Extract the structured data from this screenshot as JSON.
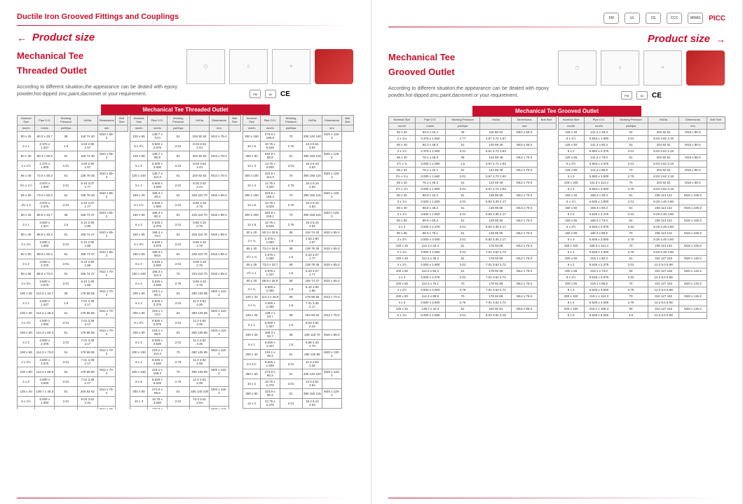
{
  "header": {
    "catalog_title": "Ductile Iron Grooved Fittings and Couplings",
    "section_label": "Product size",
    "certs": [
      "FM",
      "UL",
      "CE",
      "CCC",
      "WRAS"
    ],
    "picc": "PICC"
  },
  "left": {
    "product_name_1": "Mechanical Tee",
    "product_name_2": "Threaded Outlet",
    "description": "According to different situation,the appearance can be dealed with epoxy powder,hot-dipped zinc,paint,dacromet or your requirement.",
    "table_title": "Mechanical Tee Threaded Outlet",
    "cert_marks": [
      "FM",
      "UL"
    ],
    "ce_mark": "CE"
  },
  "right": {
    "product_name_1": "Mechanical Tee",
    "product_name_2": "Grooved Outlet",
    "description": "According to different situation,the appearance can be dealed with epoxy powder,hot-dipped zinc,paint,dacromet or your requirement.",
    "table_title": "Mechanical Tee Grooved Outlet",
    "cert_marks": [
      "FM",
      "UL"
    ],
    "ce_mark": "CE"
  },
  "table": {
    "headers": [
      "Nominal Size",
      "Pipe O.D.",
      "Working Pressure",
      "HxDia",
      "Dimensions",
      "Bolt Size"
    ],
    "sub_headers": [
      "mm/in",
      "mm/in",
      "psi/Mpa",
      "",
      "mm",
      ""
    ],
    "working_pressure": "300Psi 2.07Mpa"
  },
  "left_rows_a": [
    [
      "50 x 25",
      "60.3 x 33.7",
      "38",
      "118 74 40",
      "M10 x 55-2"
    ],
    [
      "2 x 1",
      "2.375 x 1.327",
      "1.5",
      "4.63 2.90 1.57",
      ""
    ],
    [
      "50 x 40",
      "60.3 x 48.3",
      "51",
      "118 74 40",
      "M10 x 55-2"
    ],
    [
      "2 x 1½",
      "2.375 x 1.900",
      "2.01",
      "4.63 2.90 1.57",
      ""
    ],
    [
      "65 x 40",
      "73.0 x 48.3",
      "51",
      "138 78 45",
      "M10 x 55-2"
    ],
    [
      "2½ x 1½",
      "2.875 x 1.900",
      "2.01",
      "5.43 3.07 1.77",
      ""
    ],
    [
      "65 x 50",
      "73.0 x 60.3",
      "51",
      "138 78 45",
      "M10 x 55-2"
    ],
    [
      "2½ x 2",
      "2.875 x 2.375",
      "2.01",
      "5.43 3.07 1.77",
      ""
    ],
    [
      "80 x 25",
      "88.9 x 33.7",
      "38",
      "155 74 47",
      "M10 x 55-2"
    ],
    [
      "3 x 1",
      "3.500 x 1.327",
      "1.5",
      "6.10 2.90 1.85",
      ""
    ],
    [
      "80 x 40",
      "88.9 x 48.3",
      "51",
      "155 74 47",
      "M10 x 55-2"
    ],
    [
      "3 x 1½",
      "3.500 x 1.900",
      "2.01",
      "6.10 2.90 1.85",
      ""
    ],
    [
      "80 x 50",
      "88.9 x 60.3",
      "51",
      "155 74 47",
      "M10 x 55-2"
    ],
    [
      "3 x 2",
      "3.500 x 2.375",
      "2.01",
      "6.10 2.90 1.85",
      ""
    ],
    [
      "80 x 65",
      "88.9 x 73.0",
      "51",
      "155 74 47",
      "M12 x 70-2"
    ],
    [
      "3 x 2½",
      "3.500 x 2.875",
      "2.01",
      "6.10 2.90 1.85",
      ""
    ],
    [
      "100 x 25",
      "114.3 x 33.7",
      "38",
      "178 86 55",
      "M12 x 70-2"
    ],
    [
      "4 x 1",
      "4.500 x 1.327",
      "1.5",
      "7.01 3.38 2.17",
      ""
    ],
    [
      "100 x 40",
      "114.3 x 48.3",
      "51",
      "178 86 55",
      "M12 x 70-2"
    ],
    [
      "4 x 1½",
      "4.500 x 1.900",
      "2.01",
      "7.01 3.38 2.17",
      ""
    ],
    [
      "100 x 50",
      "114.3 x 60.3",
      "51",
      "178 86 55",
      "M12 x 70-2"
    ],
    [
      "4 x 2",
      "4.500 x 2.375",
      "2.01",
      "7.01 3.38 2.17",
      ""
    ],
    [
      "100 x 65",
      "114.3 x 73.0",
      "51",
      "178 86 55",
      "M12 x 70-2"
    ],
    [
      "4 x 2½",
      "4.500 x 2.875",
      "2.01",
      "7.01 3.38 2.17",
      ""
    ],
    [
      "100 x 80",
      "114.3 x 88.9",
      "51",
      "178 86 55",
      "M12 x 70-2"
    ],
    [
      "4 x 3",
      "4.500 x 3.500",
      "2.01",
      "7.01 3.38 2.17",
      ""
    ],
    [
      "125 x 40",
      "139.7 x 48.3",
      "51",
      "204 92 62",
      "M12 x 75-2"
    ],
    [
      "5 x 1½",
      "5.500 x 1.900",
      "2.01",
      "8.03 3.62 2.44",
      ""
    ],
    [
      "125 x 50",
      "139.7 x 60.3",
      "51",
      "204 92 62",
      "M12 x 75-2"
    ],
    [
      "5 x 2",
      "5.500 x 2.375",
      "2.01",
      "8.03 3.62 2.44",
      ""
    ]
  ],
  "left_rows_b": [
    [
      "125 x 65",
      "139.7 x 73.0",
      "51",
      "204 92 62",
      "M12 x 75-2"
    ],
    [
      "5 x 2½",
      "5.500 x 2.875",
      "2.01",
      "8.03 3.62 2.44",
      ""
    ],
    [
      "125 x 80",
      "139.7 x 88.9",
      "51",
      "204 92 62",
      "M12 x 75-2"
    ],
    [
      "5 x 3",
      "5.500 x 3.500",
      "2.01",
      "8.03 3.62 2.44",
      ""
    ],
    [
      "125 x 100",
      "139.7 x 114.3",
      "51",
      "204 92 62",
      "M12 x 75-2"
    ],
    [
      "5 x 4",
      "5.500 x 4.500",
      "2.01",
      "8.03 3.62 2.44",
      ""
    ],
    [
      "150 x 40",
      "168.3 x 48.3",
      "51",
      "225 110 70",
      "M16 x 85-2"
    ],
    [
      "6 x 1½",
      "6.625 x 1.900",
      "2.01",
      "8.86 4.33 2.76",
      ""
    ],
    [
      "150 x 50",
      "168.3 x 60.3",
      "51",
      "225 110 70",
      "M16 x 85-2"
    ],
    [
      "6 x 2",
      "6.625 x 2.375",
      "2.01",
      "8.86 4.33 2.76",
      ""
    ],
    [
      "150 x 65",
      "168.3 x 73.0",
      "51",
      "225 110 70",
      "M16 x 85-2"
    ],
    [
      "6 x 2½",
      "6.625 x 2.875",
      "2.01",
      "8.86 4.33 2.76",
      ""
    ],
    [
      "150 x 80",
      "168.3 x 88.9",
      "51",
      "225 110 70",
      "M16 x 85-2"
    ],
    [
      "6 x 3",
      "6.625 x 3.500",
      "2.01",
      "8.86 4.33 2.76",
      ""
    ],
    [
      "150 x 100",
      "168.3 x 114.3",
      "70",
      "225 110 70",
      "M16 x 85-2"
    ],
    [
      "6 x 4",
      "6.625 x 4.500",
      "2.76",
      "8.86 4.33 2.76",
      ""
    ],
    [
      "200 x 50",
      "219.1 x 60.3",
      "51",
      "280 125 85",
      "M20 x 110-2"
    ],
    [
      "8 x 2",
      "8.625 x 2.375",
      "2.01",
      "11.0 4.92 3.35",
      ""
    ],
    [
      "200 x 65",
      "219.1 x 73.0",
      "51",
      "280 125 85",
      "M20 x 110-2"
    ],
    [
      "8 x 2½",
      "8.625 x 2.875",
      "2.01",
      "11.0 4.92 3.35",
      ""
    ],
    [
      "200 x 80",
      "219.1 x 88.9",
      "51",
      "280 125 85",
      "M20 x 110-2"
    ],
    [
      "8 x 3",
      "8.625 x 3.500",
      "2.01",
      "11.0 4.92 3.35",
      ""
    ],
    [
      "200 x 100",
      "219.1 x 114.3",
      "70",
      "280 125 85",
      "M20 x 110-2"
    ],
    [
      "8 x 4",
      "8.625 x 4.500",
      "2.76",
      "11.0 4.92 3.35",
      ""
    ],
    [
      "200 x 150",
      "219.1 x 168.3",
      "70",
      "280 125 85",
      "M20 x 110-2"
    ],
    [
      "8 x 6",
      "8.625 x 6.625",
      "2.76",
      "11.0 4.92 3.35",
      ""
    ],
    [
      "250 x 80",
      "273.0 x 88.9",
      "51",
      "335 140 100",
      "M20 x 115-2"
    ],
    [
      "10 x 3",
      "10.75 x 3.500",
      "2.01",
      "13.2 5.51 3.94",
      ""
    ],
    [
      "250 x 100",
      "273.0 x 114.3",
      "70",
      "335 140 100",
      "M20 x 115-2"
    ],
    [
      "10 x 4",
      "10.75 x 4.500",
      "2.76",
      "13.2 5.51 3.94",
      ""
    ]
  ],
  "left_rows_c": [
    [
      "250 x 150",
      "273.0 x 168.3",
      "70",
      "335 140 100",
      "M20 x 115-2"
    ],
    [
      "10 x 6",
      "10.75 x 6.625",
      "2.76",
      "13.2 5.51 3.94",
      ""
    ],
    [
      "300 x 80",
      "323.9 x 88.9",
      "51",
      "390 155 115",
      "M20 x 125-2"
    ],
    [
      "12 x 3",
      "12.75 x 3.500",
      "2.01",
      "15.4 6.10 4.53",
      ""
    ],
    [
      "300 x 100",
      "323.9 x 114.3",
      "70",
      "390 155 115",
      "M20 x 125-2"
    ],
    [
      "12 x 4",
      "12.75 x 4.500",
      "2.76",
      "15.4 6.10 4.53",
      ""
    ],
    [
      "300 x 150",
      "323.9 x 168.3",
      "70",
      "390 155 115",
      "M20 x 125-2"
    ],
    [
      "12 x 6",
      "12.75 x 6.625",
      "2.76",
      "15.4 6.10 4.53",
      ""
    ],
    [
      "300 x 200",
      "323.9 x 219.1",
      "70",
      "390 155 115",
      "M20 x 125-2"
    ],
    [
      "12 x 8",
      "12.75 x 8.625",
      "2.76",
      "15.4 6.10 4.53",
      ""
    ],
    [
      "50 x 20",
      "60.3 x 26.9",
      "38",
      "118 74 40",
      "M10 x 55-2"
    ],
    [
      "2 x ¾",
      "2.375 x 1.050",
      "1.5",
      "4.63 2.90 1.57",
      ""
    ],
    [
      "65 x 20",
      "73.0 x 26.9",
      "38",
      "138 78 45",
      "M10 x 55-2"
    ],
    [
      "2½ x ¾",
      "2.875 x 1.050",
      "1.5",
      "5.43 3.07 1.77",
      ""
    ],
    [
      "65 x 25",
      "73.0 x 33.7",
      "38",
      "138 78 45",
      "M10 x 55-2"
    ],
    [
      "2½ x 1",
      "2.875 x 1.327",
      "1.5",
      "5.43 3.07 1.77",
      ""
    ],
    [
      "80 x 20",
      "88.9 x 26.9",
      "38",
      "155 74 47",
      "M10 x 55-2"
    ],
    [
      "3 x ¾",
      "3.500 x 1.050",
      "1.5",
      "6.10 2.90 1.85",
      ""
    ],
    [
      "100 x 20",
      "114.3 x 26.9",
      "38",
      "178 86 55",
      "M12 x 70-2"
    ],
    [
      "4 x ¾",
      "4.500 x 1.050",
      "1.5",
      "7.01 3.38 2.17",
      ""
    ],
    [
      "125 x 25",
      "139.7 x 33.7",
      "38",
      "204 92 62",
      "M12 x 75-2"
    ],
    [
      "5 x 1",
      "5.500 x 1.327",
      "1.5",
      "8.03 3.62 2.44",
      ""
    ],
    [
      "150 x 25",
      "168.3 x 33.7",
      "38",
      "225 110 70",
      "M16 x 85-2"
    ],
    [
      "6 x 1",
      "6.625 x 1.327",
      "1.5",
      "8.86 4.33 2.76",
      ""
    ],
    [
      "200 x 40",
      "219.1 x 48.3",
      "51",
      "280 125 85",
      "M20 x 110-2"
    ],
    [
      "8 x 1½",
      "8.625 x 1.900",
      "2.01",
      "11.0 4.92 3.35",
      ""
    ],
    [
      "250 x 50",
      "273.0 x 60.3",
      "51",
      "335 140 100",
      "M20 x 115-2"
    ],
    [
      "10 x 2",
      "10.75 x 2.375",
      "2.01",
      "13.2 5.51 3.94",
      ""
    ],
    [
      "300 x 50",
      "323.9 x 60.3",
      "51",
      "390 155 115",
      "M20 x 125-2"
    ],
    [
      "12 x 2",
      "12.75 x 2.375",
      "2.01",
      "15.4 6.10 4.53",
      ""
    ]
  ],
  "right_rows_a": [
    [
      "50 x 32",
      "60.3 x 42.4",
      "45",
      "116 68 40",
      "M10 x 55-2"
    ],
    [
      "2 x 1¼",
      "2.375 x 1.660",
      "1.77",
      "4.57 2.72 1.57",
      ""
    ],
    [
      "50 x 40",
      "60.3 x 48.3",
      "51",
      "140 69 49",
      "M10 x 55-2"
    ],
    [
      "2 x 1½",
      "2.375 x 1.900",
      "2.01",
      "5.51 2.72 1.93",
      ""
    ],
    [
      "65 x 20",
      "76.1 x 26.9",
      "38",
      "144 69 49",
      "M12 x 70-2"
    ],
    [
      "2½ x ¾",
      "3.000 x 1.050",
      "1.5",
      "5.67 2.72 1.93",
      ""
    ],
    [
      "65 x 32",
      "76.1 x 42.4",
      "51",
      "144 69 49",
      "M12 x 70-2"
    ],
    [
      "2½ x 1¼",
      "3.000 x 1.660",
      "2.01",
      "5.67 2.72 1.93",
      ""
    ],
    [
      "65 x 40",
      "76.1 x 48.3",
      "51",
      "144 69 49",
      "M12 x 70-2"
    ],
    [
      "2½ x 1½",
      "3.000 x 1.900",
      "2.01",
      "5.67 2.72 1.93",
      ""
    ],
    [
      "80 x 32",
      "88.9 x 42.4",
      "51",
      "148 85 55",
      "M12 x 70-2"
    ],
    [
      "3 x 1¼",
      "3.500 x 1.660",
      "2.01",
      "5.83 3.35 2.17",
      ""
    ],
    [
      "80 x 40",
      "88.9 x 48.3",
      "51",
      "148 85 55",
      "M12 x 70-2"
    ],
    [
      "3 x 1½",
      "3.500 x 1.900",
      "2.01",
      "5.83 3.35 2.17",
      ""
    ],
    [
      "80 x 50",
      "88.9 x 60.3",
      "51",
      "148 85 55",
      "M12 x 70-2"
    ],
    [
      "3 x 2",
      "3.500 x 2.375",
      "2.01",
      "5.83 3.35 2.17",
      ""
    ],
    [
      "80 x 65",
      "88.9 x 76.1",
      "51",
      "148 85 55",
      "M12 x 70-2"
    ],
    [
      "3 x 2½",
      "3.500 x 3.000",
      "2.01",
      "5.83 3.35 2.17",
      ""
    ],
    [
      "100 x 32",
      "114.3 x 42.4",
      "51",
      "178 92 69",
      "M12 x 75-2"
    ],
    [
      "4 x 1¼",
      "4.500 x 1.660",
      "2.01",
      "7.01 3.62 2.72",
      ""
    ],
    [
      "100 x 40",
      "114.3 x 48.3",
      "51",
      "178 92 69",
      "M12 x 75-2"
    ],
    [
      "4 x 1½",
      "4.500 x 1.900",
      "2.01",
      "7.01 3.62 2.72",
      ""
    ],
    [
      "100 x 50",
      "114.3 x 60.3",
      "51",
      "178 92 69",
      "M12 x 75-2"
    ],
    [
      "4 x 2",
      "4.500 x 2.375",
      "2.01",
      "7.01 3.62 2.72",
      ""
    ],
    [
      "100 x 65",
      "114.3 x 76.1",
      "70",
      "178 92 69",
      "M12 x 75-2"
    ],
    [
      "4 x 2½",
      "4.500 x 3.000",
      "2.76",
      "7.01 3.62 2.72",
      ""
    ],
    [
      "100 x 80",
      "114.3 x 88.9",
      "70",
      "178 92 69",
      "M12 x 75-2"
    ],
    [
      "4 x 3",
      "4.500 x 3.500",
      "2.76",
      "7.01 3.62 2.72",
      ""
    ],
    [
      "125 x 32",
      "139.7 x 42.4",
      "51",
      "204 92 81",
      "M16 x 85-2"
    ],
    [
      "5 x 1¼",
      "5.500 x 1.660",
      "2.01",
      "8.03 3.62 3.19",
      ""
    ]
  ],
  "right_rows_b": [
    [
      "125 x 40",
      "141.3 x 48.3",
      "51",
      "204 92 81",
      "M16 x 85-2"
    ],
    [
      "5 x 1½",
      "5.563 x 1.900",
      "2.01",
      "8.03 3.62 3.19",
      ""
    ],
    [
      "125 x 50",
      "141.3 x 60.3",
      "51",
      "204 92 81",
      "M16 x 85-2"
    ],
    [
      "5 x 2",
      "5.563 x 2.375",
      "2.01",
      "8.03 3.62 3.19",
      ""
    ],
    [
      "125 x 65",
      "141.3 x 73.0",
      "51",
      "204 92 81",
      "M16 x 85-2"
    ],
    [
      "5 x 2½",
      "5.563 x 2.875",
      "2.01",
      "8.03 3.62 3.19",
      ""
    ],
    [
      "125 x 80",
      "141.3 x 88.9",
      "70",
      "204 92 81",
      "M16 x 85-2"
    ],
    [
      "5 x 3",
      "5.563 x 3.500",
      "2.76",
      "8.03 3.62 3.19",
      ""
    ],
    [
      "125 x 100",
      "141.3 x 114.3",
      "70",
      "204 92 81",
      "M16 x 85-2"
    ],
    [
      "5 x 4",
      "5.563 x 4.500",
      "2.76",
      "8.03 3.62 3.19",
      ""
    ],
    [
      "150 x 40",
      "168.3 x 48.3",
      "51",
      "236 113 122",
      "M16 x 105-2"
    ],
    [
      "6 x 1½",
      "6.625 x 1.900",
      "2.01",
      "9.29 4.45 4.80",
      ""
    ],
    [
      "150 x 50",
      "168.3 x 60.3",
      "51",
      "236 113 122",
      "M16 x 105-2"
    ],
    [
      "6 x 2",
      "6.625 x 2.375",
      "2.01",
      "9.29 4.45 4.80",
      ""
    ],
    [
      "150 x 65",
      "168.3 x 73.0",
      "64",
      "236 113 122",
      "M16 x 105-2"
    ],
    [
      "6 x 2½",
      "6.625 x 2.875",
      "2.52",
      "9.29 4.45 4.80",
      ""
    ],
    [
      "150 x 80",
      "168.3 x 88.9",
      "70",
      "236 113 122",
      "M16 x 105-2"
    ],
    [
      "6 x 3",
      "6.625 x 3.500",
      "2.76",
      "9.29 4.45 4.80",
      ""
    ],
    [
      "150 x 100",
      "168.3 x 114.3",
      "70",
      "236 113 122",
      "M16 x 105-2"
    ],
    [
      "6 x 4",
      "6.625 x 4.500",
      "2.76",
      "9.29 4.45 4.80",
      ""
    ],
    [
      "200 x 50",
      "219.1 x 60.3",
      "51",
      "310 127 152",
      "M20 x 115-2"
    ],
    [
      "8 x 2",
      "8.625 x 2.375",
      "2.01",
      "12.2 5.0 5.98",
      ""
    ],
    [
      "200 x 65",
      "219.1 x 73.0",
      "64",
      "310 127 152",
      "M20 x 115-2"
    ],
    [
      "8 x 2½",
      "8.625 x 2.875",
      "2.52",
      "12.2 5.0 5.98",
      ""
    ],
    [
      "200 x 80",
      "219.1 x 88.9",
      "70",
      "310 127 152",
      "M20 x 115-2"
    ],
    [
      "8 x 3",
      "8.625 x 3.500",
      "2.76",
      "12.2 5.0 5.98",
      ""
    ],
    [
      "200 x 100",
      "219.1 x 114.3",
      "70",
      "310 127 152",
      "M20 x 115-2"
    ],
    [
      "8 x 4",
      "8.625 x 4.500",
      "2.76",
      "12.2 5.0 5.98",
      ""
    ],
    [
      "200 x 150",
      "219.1 x 168.3",
      "90",
      "310 127 152",
      "M20 x 115-2"
    ],
    [
      "8 x 6",
      "8.625 x 6.625",
      "3.5",
      "12.2 5.0 5.98",
      ""
    ]
  ],
  "colors": {
    "brand_red": "#c8102e",
    "text_grey": "#555555",
    "border_grey": "#999999",
    "bg_white": "#ffffff"
  }
}
